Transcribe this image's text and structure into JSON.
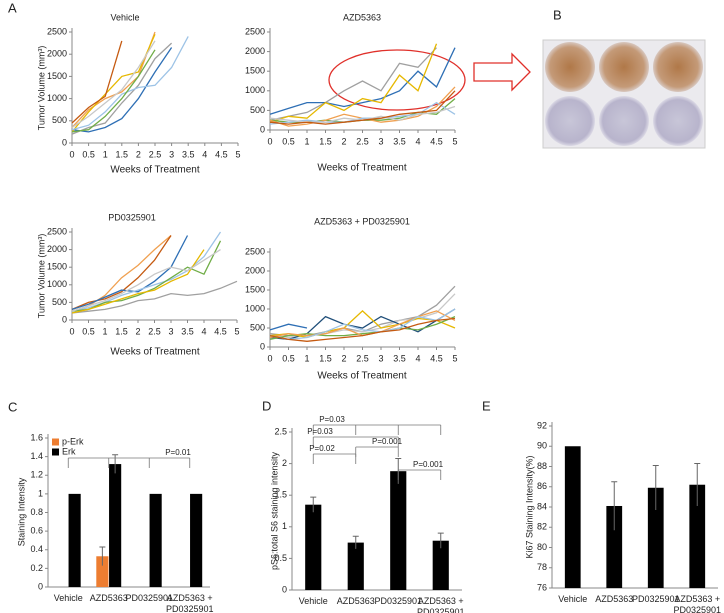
{
  "panel_labels": [
    "A",
    "B",
    "C",
    "D",
    "E"
  ],
  "chart_data": [
    {
      "type": "line",
      "title": "Vehicle",
      "x": [
        0,
        0.5,
        1,
        1.5,
        2,
        2.5,
        3,
        3.5,
        4,
        4.5,
        5
      ],
      "xlim": [
        0,
        5
      ],
      "xticks": [
        0,
        0.5,
        1,
        1.5,
        2,
        2.5,
        3,
        3.5,
        4,
        4.5,
        5
      ],
      "ylim": [
        0,
        2500
      ],
      "yticks": [
        0,
        500,
        1000,
        1500,
        2000,
        2500
      ],
      "x_label": "Weeks of Treatment",
      "y_label": "Tumor Volume (mm³)",
      "series": [
        {
          "color": "#2e6fb5",
          "values": [
            300,
            250,
            350,
            550,
            1000,
            1600,
            2150,
            null,
            null,
            null,
            null
          ]
        },
        {
          "color": "#f0a050",
          "values": [
            350,
            750,
            1000,
            1150,
            1500,
            2500,
            null,
            null,
            null,
            null,
            null
          ]
        },
        {
          "color": "#a0a0a0",
          "values": [
            200,
            350,
            450,
            900,
            1300,
            1900,
            2250,
            null,
            null,
            null,
            null
          ]
        },
        {
          "color": "#e6b800",
          "values": [
            250,
            700,
            1100,
            1500,
            1600,
            2450,
            null,
            null,
            null,
            null,
            null
          ]
        },
        {
          "color": "#9dc3e6",
          "values": [
            300,
            400,
            700,
            1100,
            1250,
            1300,
            1700,
            2400,
            null,
            null,
            null
          ]
        },
        {
          "color": "#70ad47",
          "values": [
            250,
            300,
            600,
            1000,
            1500,
            2100,
            null,
            null,
            null,
            null,
            null
          ]
        },
        {
          "color": "#c55a11",
          "values": [
            450,
            800,
            1050,
            2300,
            null,
            null,
            null,
            null,
            null,
            null,
            null
          ]
        },
        {
          "color": "#c8c8c8",
          "values": [
            350,
            600,
            900,
            1200,
            1700,
            2300,
            null,
            null,
            null,
            null,
            null
          ]
        }
      ]
    },
    {
      "type": "line",
      "title": "AZD5363",
      "x": [
        0,
        0.5,
        1,
        1.5,
        2,
        2.5,
        3,
        3.5,
        4,
        4.5,
        5
      ],
      "xlim": [
        0,
        5
      ],
      "xticks": [
        0,
        0.5,
        1,
        1.5,
        2,
        2.5,
        3,
        3.5,
        4,
        4.5,
        5
      ],
      "ylim": [
        0,
        2500
      ],
      "yticks": [
        0,
        500,
        1000,
        1500,
        2000,
        2500
      ],
      "x_label": "Weeks of Treatment",
      "series": [
        {
          "color": "#a0a0a0",
          "values": [
            250,
            350,
            450,
            700,
            1000,
            1250,
            1000,
            1700,
            1600,
            2100,
            null
          ]
        },
        {
          "color": "#2e6fb5",
          "values": [
            400,
            550,
            700,
            700,
            600,
            700,
            800,
            1000,
            1500,
            1100,
            2100
          ]
        },
        {
          "color": "#e6b800",
          "values": [
            200,
            350,
            300,
            700,
            500,
            800,
            700,
            1400,
            1000,
            2200,
            null
          ]
        },
        {
          "color": "#70ad47",
          "values": [
            250,
            200,
            200,
            250,
            200,
            250,
            250,
            300,
            450,
            400,
            800
          ]
        },
        {
          "color": "#f0a050",
          "values": [
            250,
            100,
            150,
            250,
            400,
            300,
            200,
            250,
            350,
            600,
            1100
          ]
        },
        {
          "color": "#9dc3e6",
          "values": [
            150,
            200,
            250,
            200,
            200,
            300,
            300,
            350,
            400,
            700,
            400
          ]
        },
        {
          "color": "#c8c8c8",
          "values": [
            300,
            250,
            200,
            200,
            300,
            250,
            350,
            250,
            400,
            450,
            600
          ]
        },
        {
          "color": "#c55a11",
          "values": [
            200,
            150,
            200,
            150,
            200,
            250,
            300,
            400,
            450,
            500,
            1000
          ]
        }
      ]
    },
    {
      "type": "line",
      "title": "PD0325901",
      "x": [
        0,
        0.5,
        1,
        1.5,
        2,
        2.5,
        3,
        3.5,
        4,
        4.5,
        5
      ],
      "xlim": [
        0,
        5
      ],
      "xticks": [
        0,
        0.5,
        1,
        1.5,
        2,
        2.5,
        3,
        3.5,
        4,
        4.5,
        5
      ],
      "ylim": [
        0,
        2500
      ],
      "yticks": [
        0,
        500,
        1000,
        1500,
        2000,
        2500
      ],
      "x_label": "Weeks of Treatment",
      "y_label": "Tumor Volume (mm³)",
      "series": [
        {
          "color": "#f0a050",
          "values": [
            250,
            400,
            700,
            1200,
            1550,
            2000,
            2400,
            null,
            null,
            null,
            null
          ]
        },
        {
          "color": "#c55a11",
          "values": [
            300,
            500,
            600,
            800,
            1200,
            1700,
            2400,
            null,
            null,
            null,
            null
          ]
        },
        {
          "color": "#a0a0a0",
          "values": [
            200,
            250,
            300,
            400,
            550,
            600,
            750,
            700,
            750,
            900,
            1100
          ]
        },
        {
          "color": "#2e6fb5",
          "values": [
            300,
            450,
            650,
            850,
            800,
            1100,
            1500,
            2400,
            null,
            null,
            null
          ]
        },
        {
          "color": "#9dc3e6",
          "values": [
            250,
            350,
            500,
            700,
            850,
            1000,
            1150,
            1400,
            1800,
            2500,
            null
          ]
        },
        {
          "color": "#70ad47",
          "values": [
            250,
            300,
            500,
            550,
            700,
            900,
            1200,
            1500,
            1300,
            2250,
            null
          ]
        },
        {
          "color": "#e6b800",
          "values": [
            200,
            300,
            450,
            600,
            750,
            850,
            1100,
            1300,
            2000,
            null,
            null
          ]
        },
        {
          "color": "#c8c8c8",
          "values": [
            250,
            400,
            550,
            750,
            1000,
            1300,
            1500,
            1400,
            1700,
            2000,
            null
          ]
        }
      ]
    },
    {
      "type": "line",
      "title": "AZD5363 + PD0325901",
      "x": [
        0,
        0.5,
        1,
        1.5,
        2,
        2.5,
        3,
        3.5,
        4,
        4.5,
        5
      ],
      "xlim": [
        0,
        5
      ],
      "xticks": [
        0,
        0.5,
        1,
        1.5,
        2,
        2.5,
        3,
        3.5,
        4,
        4.5,
        5
      ],
      "ylim": [
        0,
        2500
      ],
      "yticks": [
        0,
        500,
        1000,
        1500,
        2000,
        2500
      ],
      "x_label": "Weeks of Treatment",
      "series": [
        {
          "color": "#a0a0a0",
          "values": [
            350,
            300,
            300,
            400,
            500,
            400,
            600,
            700,
            800,
            1100,
            1600
          ]
        },
        {
          "color": "#c8c8c8",
          "values": [
            300,
            250,
            300,
            350,
            450,
            400,
            500,
            700,
            750,
            900,
            1400
          ]
        },
        {
          "color": "#2e6fb5",
          "values": [
            450,
            600,
            500,
            null,
            null,
            null,
            null,
            null,
            null,
            null,
            null
          ]
        },
        {
          "color": "#1f4e79",
          "values": [
            250,
            200,
            350,
            800,
            600,
            500,
            800,
            600,
            400,
            700,
            1000
          ]
        },
        {
          "color": "#e6b800",
          "values": [
            300,
            350,
            250,
            400,
            500,
            950,
            500,
            600,
            750,
            700,
            500
          ]
        },
        {
          "color": "#70ad47",
          "values": [
            200,
            300,
            350,
            300,
            300,
            350,
            400,
            500,
            450,
            600,
            800
          ]
        },
        {
          "color": "#f0a050",
          "values": [
            250,
            350,
            300,
            350,
            500,
            300,
            400,
            600,
            800,
            950,
            700
          ]
        },
        {
          "color": "#9dc3e6",
          "values": [
            300,
            200,
            250,
            400,
            600,
            450,
            400,
            500,
            800,
            700,
            1000
          ]
        },
        {
          "color": "#c55a11",
          "values": [
            300,
            200,
            150,
            200,
            250,
            300,
            400,
            450,
            600,
            700,
            750
          ]
        }
      ]
    },
    {
      "type": "bar",
      "categories": [
        "Vehicle",
        "AZD5363",
        "PD0325901",
        "AZD5363 + PD0325901"
      ],
      "ylim": [
        0,
        1.6
      ],
      "yticks": [
        0,
        0.2,
        0.4,
        0.6,
        0.8,
        1,
        1.2,
        1.4,
        1.6
      ],
      "y_label": "Staining Intensity",
      "legend": "upper left",
      "annotations": [
        "P=0.01"
      ],
      "series": [
        {
          "name": "p-Erk",
          "color": "#ed7d31",
          "values": [
            null,
            0.33,
            null,
            null
          ],
          "errors": [
            null,
            0.1,
            null,
            null
          ]
        },
        {
          "name": "Erk",
          "color": "#000000",
          "values": [
            1,
            1.32,
            1,
            1
          ],
          "errors": [
            null,
            0.1,
            null,
            null
          ]
        }
      ]
    },
    {
      "type": "bar",
      "categories": [
        "Vehicle",
        "AZD5363",
        "PD0325901",
        "AZD5363 + PD0325901"
      ],
      "ylim": [
        0,
        2.5
      ],
      "yticks": [
        0,
        0.5,
        1,
        1.5,
        2,
        2.5
      ],
      "y_label": "pS6:total S6 staining intensity",
      "annotations": [
        "P=0.03",
        "P=0.03",
        "P=0.02",
        "P=0.001",
        "P=0.001"
      ],
      "series": [
        {
          "color": "#000000",
          "values": [
            1.35,
            0.75,
            1.88,
            0.78
          ],
          "errors": [
            0.12,
            0.1,
            0.2,
            0.12
          ]
        }
      ]
    },
    {
      "type": "bar",
      "categories": [
        "Vehicle",
        "AZD5363",
        "PD0325901",
        "AZD5363 + PD0325901"
      ],
      "ylim": [
        76,
        92
      ],
      "yticks": [
        76,
        78,
        80,
        82,
        84,
        86,
        88,
        90,
        92
      ],
      "y_label": "Ki67 Staining Intensity(%)",
      "series": [
        {
          "color": "#000000",
          "values": [
            90,
            84.1,
            85.9,
            86.2
          ],
          "errors": [
            null,
            2.4,
            2.2,
            2.1
          ]
        }
      ]
    }
  ]
}
